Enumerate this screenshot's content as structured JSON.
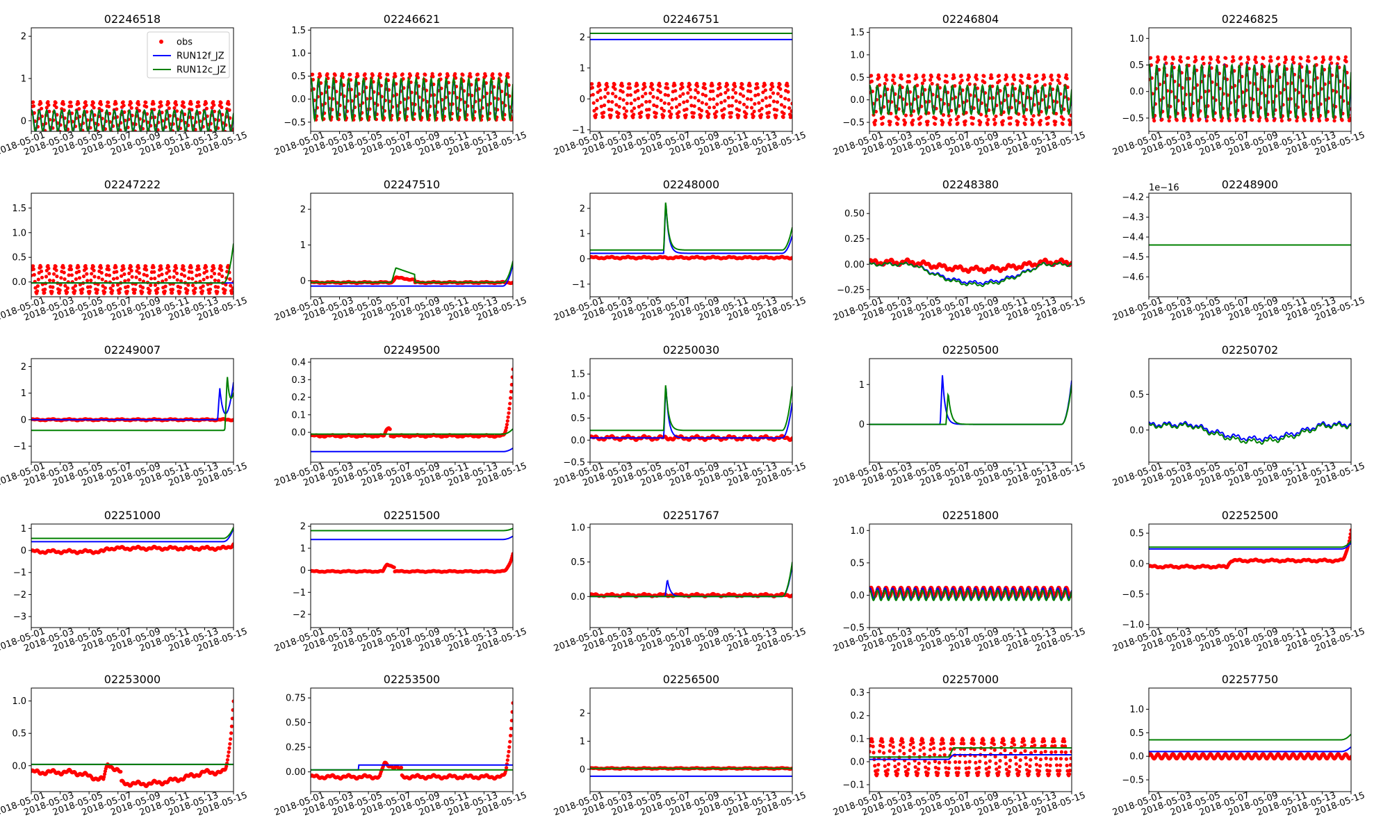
{
  "figure": {
    "background": "#ffffff"
  },
  "colors": {
    "obs": "#ff0000",
    "RUN12f_JZ": "#0000ff",
    "RUN12c_JZ": "#008000"
  },
  "x_tick_labels": [
    "2018-05-01",
    "2018-05-03",
    "2018-05-05",
    "2018-05-07",
    "2018-05-09",
    "2018-05-11",
    "2018-05-13",
    "2018-05-15"
  ],
  "chart_data": [
    {
      "type": "line",
      "title": "02246518",
      "ylim": [
        -0.25,
        2.2
      ],
      "yticks": [
        0,
        1,
        2
      ],
      "ytick_labels": [
        "0",
        "1",
        "2"
      ],
      "legend": {
        "position": "upper-right",
        "entries": [
          "obs",
          "RUN12f_JZ",
          "RUN12c_JZ"
        ]
      },
      "obs": {
        "base": 0.05,
        "amp": 0.4,
        "period": 0.52
      },
      "f": {
        "base": 0,
        "amp": 0.25,
        "period": 0.52
      },
      "c": {
        "base": 0,
        "amp": 0.25,
        "period": 0.52
      }
    },
    {
      "type": "line",
      "title": "02246621",
      "ylim": [
        -0.7,
        1.55
      ],
      "yticks": [
        -0.5,
        0,
        0.5,
        1,
        1.5
      ],
      "ytick_labels": [
        "−0.5",
        "0.0",
        "0.5",
        "1.0",
        "1.5"
      ],
      "obs": {
        "base": 0.05,
        "amp": 0.5,
        "period": 0.52
      },
      "f": {
        "base": 0,
        "amp": 0.4,
        "period": 0.52
      },
      "c": {
        "base": 0,
        "amp": 0.45,
        "period": 0.52
      }
    },
    {
      "type": "line",
      "title": "02246751",
      "ylim": [
        -1.05,
        2.3
      ],
      "yticks": [
        -1,
        0,
        1,
        2
      ],
      "ytick_labels": [
        "−1",
        "0",
        "1",
        "2"
      ],
      "obs": {
        "base": -0.05,
        "amp": 0.55,
        "period": 0.52
      },
      "f": {
        "level": 1.92
      },
      "c": {
        "level": 2.12
      }
    },
    {
      "type": "line",
      "title": "02246804",
      "ylim": [
        -0.7,
        1.6
      ],
      "yticks": [
        -0.5,
        0,
        0.5,
        1,
        1.5
      ],
      "ytick_labels": [
        "−0.5",
        "0.0",
        "0.5",
        "1.0",
        "1.5"
      ],
      "obs": {
        "base": 0,
        "amp": 0.55,
        "period": 0.52
      },
      "f": {
        "base": 0,
        "amp": 0.3,
        "period": 0.52
      },
      "c": {
        "base": 0,
        "amp": 0.32,
        "period": 0.52
      }
    },
    {
      "type": "line",
      "title": "02246825",
      "ylim": [
        -0.75,
        1.2
      ],
      "yticks": [
        -0.5,
        0,
        0.5,
        1
      ],
      "ytick_labels": [
        "−0.5",
        "0.0",
        "0.5",
        "1.0"
      ],
      "obs": {
        "base": 0.05,
        "amp": 0.6,
        "period": 0.52
      },
      "f": {
        "base": 0,
        "amp": 0.5,
        "period": 0.52
      },
      "c": {
        "base": 0,
        "amp": 0.5,
        "period": 0.52
      }
    },
    {
      "type": "line",
      "title": "02247222",
      "ylim": [
        -0.3,
        1.8
      ],
      "yticks": [
        0,
        0.5,
        1,
        1.5
      ],
      "ytick_labels": [
        "0.0",
        "0.5",
        "1.0",
        "1.5"
      ],
      "obs": {
        "base": 0.05,
        "amp": 0.28,
        "period": 0.52
      },
      "f": {
        "level": -0.02
      },
      "c": {
        "level": -0.02,
        "rise": 0.8
      }
    },
    {
      "type": "line",
      "title": "02247510",
      "ylim": [
        -0.45,
        2.45
      ],
      "yticks": [
        0,
        1,
        2
      ],
      "ytick_labels": [
        "0",
        "1",
        "2"
      ],
      "obs": {
        "base": -0.05,
        "amp": 0.02,
        "bump": [
          5.6,
          7.2,
          0.15
        ]
      },
      "f": {
        "level": -0.15,
        "rise": 0.6
      },
      "c": {
        "level": -0.05,
        "bump": [
          5.6,
          7.2,
          0.45
        ],
        "rise": 0.6
      }
    },
    {
      "type": "line",
      "title": "02248000",
      "ylim": [
        -1.5,
        2.6
      ],
      "yticks": [
        -1,
        0,
        1,
        2
      ],
      "ytick_labels": [
        "−1",
        "0",
        "1",
        "2"
      ],
      "obs": {
        "base": 0.05,
        "amp": 0.04
      },
      "f": {
        "level": 0.22,
        "spike": [
          5.1,
          2.2
        ],
        "rise": 0.7
      },
      "c": {
        "level": 0.35,
        "spike": [
          5.1,
          2.2
        ],
        "rise": 0.9
      }
    },
    {
      "type": "line",
      "title": "02248380",
      "ylim": [
        -0.32,
        0.7
      ],
      "yticks": [
        -0.25,
        0,
        0.25,
        0.5
      ],
      "ytick_labels": [
        "−0.25",
        "0.00",
        "0.25",
        "0.50"
      ],
      "obs": {
        "base": 0.02,
        "amp": 0.03,
        "dip": -0.07
      },
      "f": {
        "base": 0,
        "amp": 0.02,
        "dip": -0.18
      },
      "c": {
        "base": 0,
        "amp": 0.02,
        "dip": -0.2
      }
    },
    {
      "type": "line",
      "title": "02248900",
      "ylim": [
        -4.7,
        -4.18
      ],
      "yticks": [
        -4.6,
        -4.5,
        -4.4,
        -4.3,
        -4.2
      ],
      "ytick_labels": [
        "−4.6",
        "−4.5",
        "−4.4",
        "−4.3",
        "−4.2"
      ],
      "offset_text": "1e−16",
      "f": {
        "level": -4.44
      },
      "c": {
        "level": -4.44
      }
    },
    {
      "type": "line",
      "title": "02249007",
      "ylim": [
        -1.6,
        2.3
      ],
      "yticks": [
        -1,
        0,
        1,
        2
      ],
      "ytick_labels": [
        "−1",
        "0",
        "1",
        "2"
      ],
      "obs": {
        "base": 0,
        "amp": 0.03
      },
      "f": {
        "level": 0,
        "spike": [
          12.9,
          1.2
        ],
        "rise": 1.4
      },
      "c": {
        "level": -0.4,
        "spike": [
          13.4,
          1.7
        ],
        "rise": 1.2
      }
    },
    {
      "type": "line",
      "title": "02249500",
      "ylim": [
        -0.17,
        0.42
      ],
      "yticks": [
        0,
        0.1,
        0.2,
        0.3,
        0.4
      ],
      "ytick_labels": [
        "0.0",
        "0.1",
        "0.2",
        "0.3",
        "0.4"
      ],
      "obs": {
        "base": -0.02,
        "amp": 0.006,
        "bump": [
          5.1,
          5.5,
          0.08
        ],
        "rise": 0.38
      },
      "f": {
        "level": -0.11,
        "rise": 0.02
      },
      "c": {
        "level": -0.01,
        "rise": 0.03
      }
    },
    {
      "type": "line",
      "title": "02250030",
      "ylim": [
        -0.5,
        1.85
      ],
      "yticks": [
        -0.5,
        0,
        0.5,
        1,
        1.5
      ],
      "ytick_labels": [
        "−0.5",
        "0.0",
        "0.5",
        "1.0",
        "1.5"
      ],
      "obs": {
        "base": 0.05,
        "amp": 0.05
      },
      "f": {
        "level": 0.05,
        "spike": [
          5.1,
          1.25
        ],
        "rise": 0.8
      },
      "c": {
        "level": 0.22,
        "spike": [
          5.1,
          1.2
        ],
        "rise": 1.0
      }
    },
    {
      "type": "line",
      "title": "02250500",
      "ylim": [
        -0.95,
        1.65
      ],
      "yticks": [
        0,
        1
      ],
      "ytick_labels": [
        "0",
        "1"
      ],
      "f": {
        "level": 0,
        "spike": [
          4.9,
          1.25
        ],
        "rise": 1.1
      },
      "c": {
        "level": 0,
        "spike": [
          5.3,
          0.8
        ],
        "rise": 1.0
      }
    },
    {
      "type": "line",
      "title": "02250702",
      "ylim": [
        -0.45,
        1.0
      ],
      "yticks": [
        0,
        0.5
      ],
      "ytick_labels": [
        "0.0",
        "0.5"
      ],
      "f": {
        "base": 0.08,
        "amp": 0.04,
        "dip": -0.2
      },
      "c": {
        "base": 0.06,
        "amp": 0.04,
        "dip": -0.22
      }
    },
    {
      "type": "line",
      "title": "02251000",
      "ylim": [
        -3.5,
        1.2
      ],
      "yticks": [
        -3,
        -2,
        -1,
        0,
        1
      ],
      "ytick_labels": [
        "−3",
        "−2",
        "−1",
        "0",
        "1"
      ],
      "obs": {
        "base": -0.05,
        "amp": 0.08,
        "bump": [
          5.0,
          15,
          0.15
        ],
        "rise": 0.2
      },
      "f": {
        "level": 0.4,
        "rise": 0.6
      },
      "c": {
        "level": 0.55,
        "rise": 0.5
      }
    },
    {
      "type": "line",
      "title": "02251500",
      "ylim": [
        -2.6,
        2.1
      ],
      "yticks": [
        -2,
        -1,
        0,
        1,
        2
      ],
      "ytick_labels": [
        "−2",
        "−1",
        "0",
        "1",
        "2"
      ],
      "obs": {
        "base": -0.05,
        "amp": 0.03,
        "bump": [
          5.0,
          5.8,
          0.4
        ],
        "rise": 0.8
      },
      "f": {
        "level": 1.4,
        "rise": 0.15
      },
      "c": {
        "level": 1.8,
        "rise": 0.1
      }
    },
    {
      "type": "line",
      "title": "02251767",
      "ylim": [
        -0.45,
        1.05
      ],
      "yticks": [
        0,
        0.5,
        1
      ],
      "ytick_labels": [
        "0.0",
        "0.5",
        "1.0"
      ],
      "obs": {
        "base": 0.02,
        "amp": 0.02
      },
      "f": {
        "level": 0.0,
        "spike": [
          5.2,
          0.25
        ],
        "rise": 0.45
      },
      "c": {
        "level": 0.0,
        "rise": 0.5
      }
    },
    {
      "type": "line",
      "title": "02251800",
      "ylim": [
        -0.5,
        1.1
      ],
      "yticks": [
        -0.5,
        0,
        0.5,
        1
      ],
      "ytick_labels": [
        "−0.5",
        "0.0",
        "0.5",
        "1.0"
      ],
      "obs": {
        "base": 0.05,
        "amp": 0.07,
        "period": 0.52
      },
      "f": {
        "base": 0.03,
        "amp": 0.08,
        "period": 0.52
      },
      "c": {
        "base": 0.0,
        "amp": 0.08,
        "period": 0.52
      }
    },
    {
      "type": "line",
      "title": "02252500",
      "ylim": [
        -1.05,
        0.65
      ],
      "yticks": [
        -1,
        -0.5,
        0,
        0.5
      ],
      "ytick_labels": [
        "−1.0",
        "−0.5",
        "0.0",
        "0.5"
      ],
      "obs": {
        "base": -0.05,
        "amp": 0.02,
        "bump": [
          5.4,
          15,
          0.1
        ],
        "rise": 0.5
      },
      "f": {
        "level": 0.24,
        "rise": 0.1
      },
      "c": {
        "level": 0.27,
        "rise": 0.1
      }
    },
    {
      "type": "line",
      "title": "02253000",
      "ylim": [
        -0.4,
        1.2
      ],
      "yticks": [
        0,
        0.5,
        1
      ],
      "ytick_labels": [
        "0.0",
        "0.5",
        "1.0"
      ],
      "obs": {
        "base": -0.1,
        "amp": 0.04,
        "bump": [
          5.0,
          6.2,
          0.3
        ],
        "dip": -0.18,
        "rise": 1.1
      },
      "f": {
        "level": 0.02
      },
      "c": {
        "level": 0.02
      }
    },
    {
      "type": "line",
      "title": "02253500",
      "ylim": [
        -0.2,
        0.85
      ],
      "yticks": [
        0,
        0.25,
        0.5,
        0.75
      ],
      "ytick_labels": [
        "0.00",
        "0.25",
        "0.50",
        "0.75"
      ],
      "obs": {
        "base": -0.05,
        "amp": 0.02,
        "bump": [
          4.8,
          6.3,
          0.15
        ],
        "rise": 0.75
      },
      "f": {
        "level": 0.02,
        "step": [
          3.3,
          0.05
        ]
      },
      "c": {
        "level": 0.02
      }
    },
    {
      "type": "line",
      "title": "02256500",
      "ylim": [
        -0.8,
        2.9
      ],
      "yticks": [
        0,
        1,
        2
      ],
      "ytick_labels": [
        "0",
        "1",
        "2"
      ],
      "obs": {
        "base": 0.03,
        "amp": 0.02
      },
      "f": {
        "level": -0.25
      },
      "c": {
        "level": 0.03
      }
    },
    {
      "type": "line",
      "title": "02257000",
      "ylim": [
        -0.13,
        0.32
      ],
      "yticks": [
        -0.1,
        0,
        0.1,
        0.2,
        0.3
      ],
      "ytick_labels": [
        "−0.1",
        "0.0",
        "0.1",
        "0.2",
        "0.3"
      ],
      "obs": {
        "base": 0.02,
        "amp": 0.08,
        "period": 0.7
      },
      "f": {
        "level": 0.01,
        "bump": [
          5.5,
          15,
          0.02
        ]
      },
      "c": {
        "level": 0.02,
        "bump": [
          5.5,
          15,
          0.04
        ]
      }
    },
    {
      "type": "line",
      "title": "02257750",
      "ylim": [
        -0.75,
        1.45
      ],
      "yticks": [
        -0.5,
        0,
        0.5,
        1
      ],
      "ytick_labels": [
        "−0.5",
        "0.0",
        "0.5",
        "1.0"
      ],
      "obs": {
        "base": 0.0,
        "amp": 0.05,
        "period": 0.52
      },
      "f": {
        "level": 0.1,
        "rise": 0.1
      },
      "c": {
        "level": 0.35,
        "rise": 0.12
      }
    }
  ]
}
